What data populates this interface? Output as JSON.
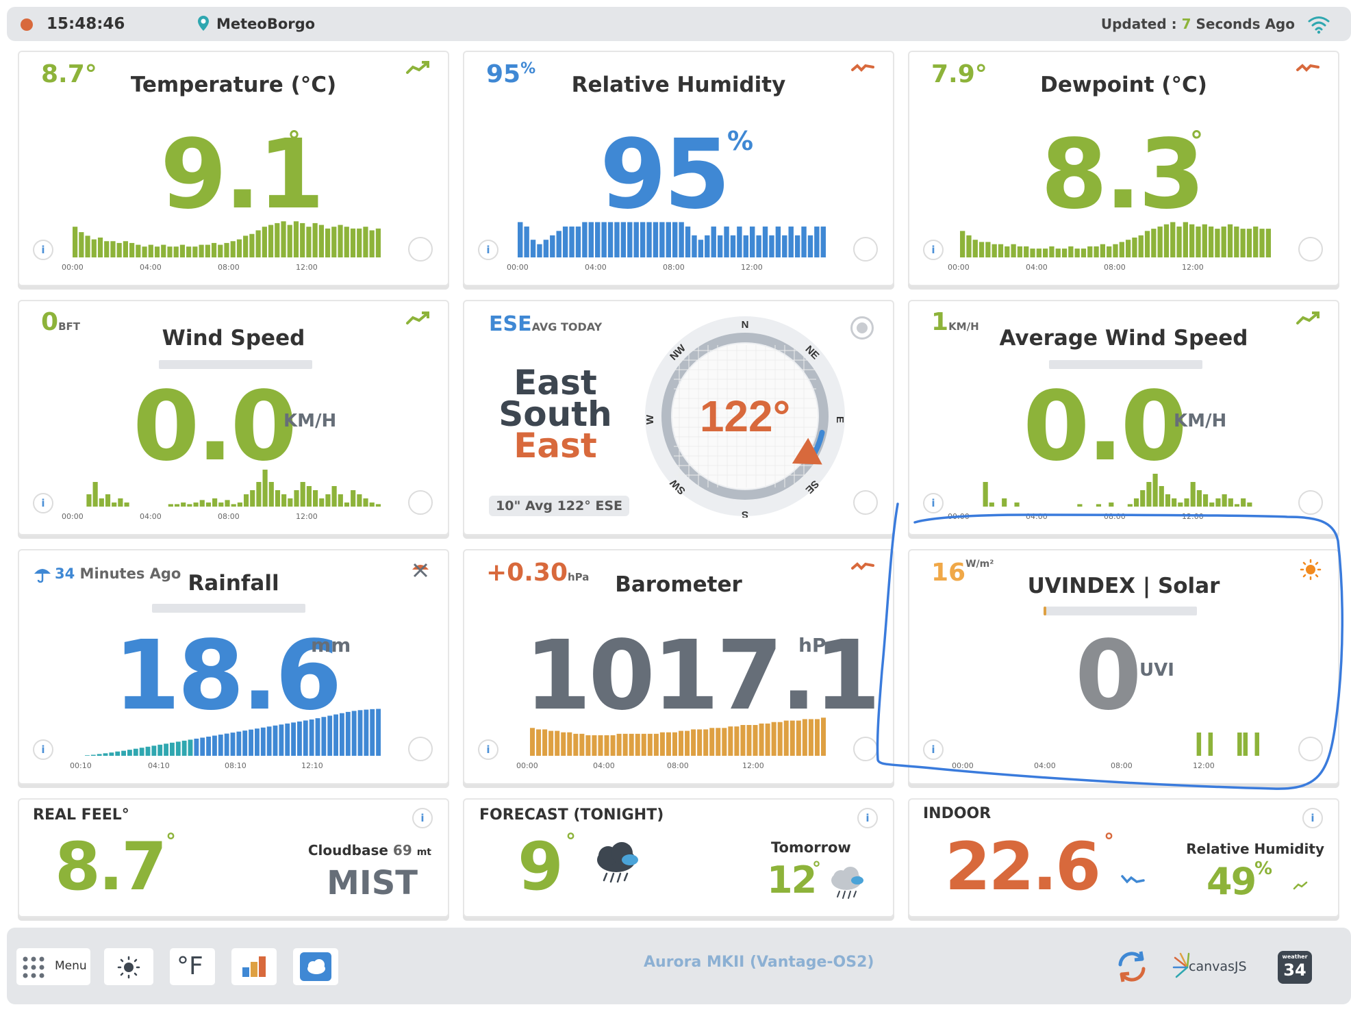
{
  "topbar": {
    "time": "15:48:46",
    "location": "MeteoBorgo",
    "updated_prefix": "Updated :",
    "updated_value": "7",
    "updated_suffix": "Seconds Ago"
  },
  "temperature": {
    "small_value": "8.7°",
    "title": "Temperature (°C)",
    "value": "9.1",
    "unit": "°",
    "ticks": [
      "00:00",
      "04:00",
      "08:00",
      "12:00"
    ]
  },
  "humidity": {
    "small_value": "95",
    "small_unit": "%",
    "title": "Relative Humidity",
    "value": "95",
    "unit": "%",
    "ticks": [
      "00:00",
      "04:00",
      "08:00",
      "12:00"
    ]
  },
  "dewpoint": {
    "small_value": "7.9°",
    "title": "Dewpoint (°C)",
    "value": "8.3",
    "unit": "°",
    "ticks": [
      "00:00",
      "04:00",
      "08:00",
      "12:00"
    ]
  },
  "wind": {
    "small_value": "0",
    "small_unit": "BFT",
    "title": "Wind Speed",
    "value": "0.0",
    "unit": "KM/H",
    "ticks": [
      "00:00",
      "04:00",
      "08:00",
      "12:00"
    ]
  },
  "direction": {
    "small_value": "ESE",
    "small_label": "AVG TODAY",
    "name_line1": "East",
    "name_line2": "South",
    "name_line3": "East",
    "degrees": "122°",
    "avg_label": "10\" Avg 122° ESE",
    "compass": [
      "N",
      "NE",
      "E",
      "SE",
      "S",
      "SW",
      "W",
      "NW"
    ],
    "bearing_deg": 122
  },
  "avg_wind": {
    "small_value": "1",
    "small_unit": "KM/H",
    "title": "Average Wind Speed",
    "value": "0.0",
    "unit": "KM/H",
    "ticks": [
      "00:00",
      "04:00",
      "08:00",
      "12:00"
    ]
  },
  "rain": {
    "small_value": "34",
    "small_label": "Minutes Ago",
    "title": "Rainfall",
    "value": "18.6",
    "unit": "mm",
    "ticks": [
      "00:10",
      "04:10",
      "08:10",
      "12:10"
    ]
  },
  "barometer": {
    "small_value": "+0.30",
    "small_unit": "hPa",
    "title": "Barometer",
    "value": "1017.1",
    "unit": "hPa",
    "ticks": [
      "00:00",
      "04:00",
      "08:00",
      "12:00"
    ]
  },
  "uv": {
    "small_value": "16",
    "small_unit": "W/m²",
    "title": "UVINDEX | Solar",
    "value": "0",
    "unit": "UVI",
    "ticks": [
      "00:00",
      "04:00",
      "08:00",
      "12:00"
    ]
  },
  "realfeel": {
    "title": "REAL FEEL°",
    "value": "8.7",
    "unit": "°",
    "cloudbase_label": "Cloudbase",
    "cloudbase_value": "69",
    "cloudbase_unit": "mt",
    "condition": "MIST"
  },
  "forecast": {
    "title": "FORECAST (TONIGHT)",
    "value": "9",
    "unit": "°",
    "tomorrow_label": "Tomorrow",
    "tomorrow_value": "12",
    "tomorrow_unit": "°"
  },
  "indoor": {
    "title": "INDOOR",
    "value": "22.6",
    "unit": "°",
    "rh_label": "Relative Humidity",
    "rh_value": "49",
    "rh_unit": "%"
  },
  "bottombar": {
    "menu_label": "Menu",
    "unit_toggle": "°F",
    "device": "Aurora MKII (Vantage-OS2)",
    "canvasjs": "canvasJS",
    "w34_label": "weather",
    "w34_value": "34"
  },
  "colors": {
    "green": "#8db33a",
    "blue": "#3f88d4",
    "orange": "#d8693c",
    "amber": "#dea042",
    "grey": "#666e78",
    "teal": "#2fa7b0",
    "annotation": "#3a7bdc"
  },
  "chart_data": [
    {
      "type": "bar",
      "name": "temperature",
      "values": [
        9.3,
        9.0,
        8.8,
        8.6,
        8.7,
        8.5,
        8.5,
        8.4,
        8.5,
        8.4,
        8.3,
        8.2,
        8.3,
        8.2,
        8.3,
        8.2,
        8.2,
        8.3,
        8.2,
        8.2,
        8.3,
        8.3,
        8.4,
        8.3,
        8.4,
        8.5,
        8.6,
        8.8,
        8.9,
        9.1,
        9.3,
        9.4,
        9.5,
        9.6,
        9.4,
        9.6,
        9.5,
        9.3,
        9.5,
        9.4,
        9.2,
        9.3,
        9.4,
        9.3,
        9.2,
        9.2,
        9.3,
        9.1,
        9.2
      ],
      "ylim": [
        7.6,
        9.8
      ]
    },
    {
      "type": "bar",
      "name": "humidity",
      "values": [
        96,
        95,
        92,
        91,
        92,
        93,
        94,
        95,
        95,
        95,
        96,
        96,
        96,
        96,
        96,
        96,
        96,
        96,
        96,
        96,
        96,
        96,
        96,
        96,
        96,
        96,
        95,
        93,
        92,
        93,
        95,
        93,
        95,
        93,
        95,
        93,
        95,
        93,
        95,
        93,
        95,
        93,
        95,
        93,
        95,
        93,
        95,
        95
      ],
      "ylim": [
        88,
        97
      ]
    },
    {
      "type": "bar",
      "name": "dewpoint",
      "values": [
        8.4,
        8.2,
        8.0,
        7.9,
        7.9,
        7.8,
        7.8,
        7.7,
        7.8,
        7.7,
        7.7,
        7.6,
        7.6,
        7.6,
        7.7,
        7.6,
        7.6,
        7.7,
        7.6,
        7.6,
        7.7,
        7.7,
        7.8,
        7.7,
        7.8,
        7.9,
        8.0,
        8.1,
        8.2,
        8.4,
        8.5,
        8.6,
        8.7,
        8.8,
        8.6,
        8.8,
        8.7,
        8.6,
        8.7,
        8.6,
        8.5,
        8.6,
        8.7,
        8.6,
        8.5,
        8.5,
        8.6,
        8.5,
        8.5
      ],
      "ylim": [
        7.2,
        9.0
      ]
    },
    {
      "type": "bar",
      "name": "wind",
      "values": [
        0,
        0,
        1.5,
        3,
        1,
        1.5,
        0.5,
        1,
        0.5,
        0,
        0,
        0,
        0,
        0,
        0,
        0.3,
        0.3,
        0.5,
        0.3,
        0.5,
        0.8,
        0.5,
        1,
        0.5,
        0.8,
        0.3,
        0.5,
        1.5,
        2,
        3,
        4.5,
        3,
        2,
        1.5,
        1,
        2,
        3,
        2.5,
        2,
        1,
        1.5,
        2.5,
        1.5,
        0.5,
        2,
        1.5,
        1,
        0.5,
        0.3
      ],
      "ylim": [
        0,
        5
      ]
    },
    {
      "type": "bar",
      "name": "avg_wind",
      "values": [
        0,
        0,
        0,
        3,
        0.5,
        0,
        1,
        0,
        0.5,
        0,
        0,
        0,
        0,
        0,
        0,
        0,
        0,
        0,
        0.3,
        0,
        0,
        0.3,
        0,
        0.5,
        0,
        0,
        0.3,
        1,
        2,
        3,
        4,
        2.5,
        1.5,
        1,
        0.5,
        1,
        3,
        2,
        1.5,
        0.5,
        1,
        1.5,
        1,
        0.3,
        1,
        0.5,
        0,
        0,
        0
      ],
      "ylim": [
        0,
        5
      ]
    },
    {
      "type": "bar",
      "name": "rainfall",
      "values": [
        0.2,
        0.4,
        0.7,
        1.0,
        1.3,
        1.7,
        2.0,
        2.4,
        2.8,
        3.2,
        3.6,
        4.0,
        4.4,
        4.8,
        5.2,
        5.6,
        6.0,
        6.4,
        6.8,
        7.2,
        7.6,
        8.0,
        8.4,
        8.8,
        9.2,
        9.6,
        10.0,
        10.4,
        10.8,
        11.2,
        11.6,
        12.0,
        12.4,
        12.8,
        13.2,
        13.6,
        14.0,
        14.4,
        14.9,
        15.4,
        15.9,
        16.4,
        16.9,
        17.4,
        17.8,
        18.1,
        18.3,
        18.5,
        18.6
      ],
      "ylim": [
        0,
        19
      ]
    },
    {
      "type": "bar",
      "name": "barometer",
      "values": [
        1016.4,
        1016.3,
        1016.3,
        1016.2,
        1016.2,
        1016.1,
        1016.1,
        1016.0,
        1016.0,
        1015.9,
        1015.9,
        1015.9,
        1015.9,
        1015.9,
        1016.0,
        1016.0,
        1016.0,
        1016.0,
        1016.0,
        1016.0,
        1016.0,
        1016.1,
        1016.1,
        1016.1,
        1016.2,
        1016.2,
        1016.3,
        1016.3,
        1016.3,
        1016.4,
        1016.4,
        1016.4,
        1016.5,
        1016.5,
        1016.6,
        1016.6,
        1016.6,
        1016.7,
        1016.7,
        1016.8,
        1016.8,
        1016.9,
        1016.9,
        1016.9,
        1017.0,
        1017.0,
        1017.0,
        1017.1
      ],
      "ylim": [
        1014.5,
        1017.3
      ]
    },
    {
      "type": "bar",
      "name": "uv",
      "values": [
        0,
        0,
        0,
        0,
        0,
        0,
        0,
        0,
        0,
        0,
        0,
        0,
        0,
        0,
        0,
        0,
        0,
        0,
        0,
        0,
        0,
        0,
        0,
        0,
        0,
        0,
        0,
        0,
        0,
        0,
        0,
        0,
        0,
        0,
        0,
        0,
        0,
        0,
        0,
        0,
        1,
        0,
        1,
        0,
        0,
        0,
        0,
        1,
        1,
        0,
        1,
        0,
        0
      ],
      "ylim": [
        0,
        1
      ]
    }
  ]
}
